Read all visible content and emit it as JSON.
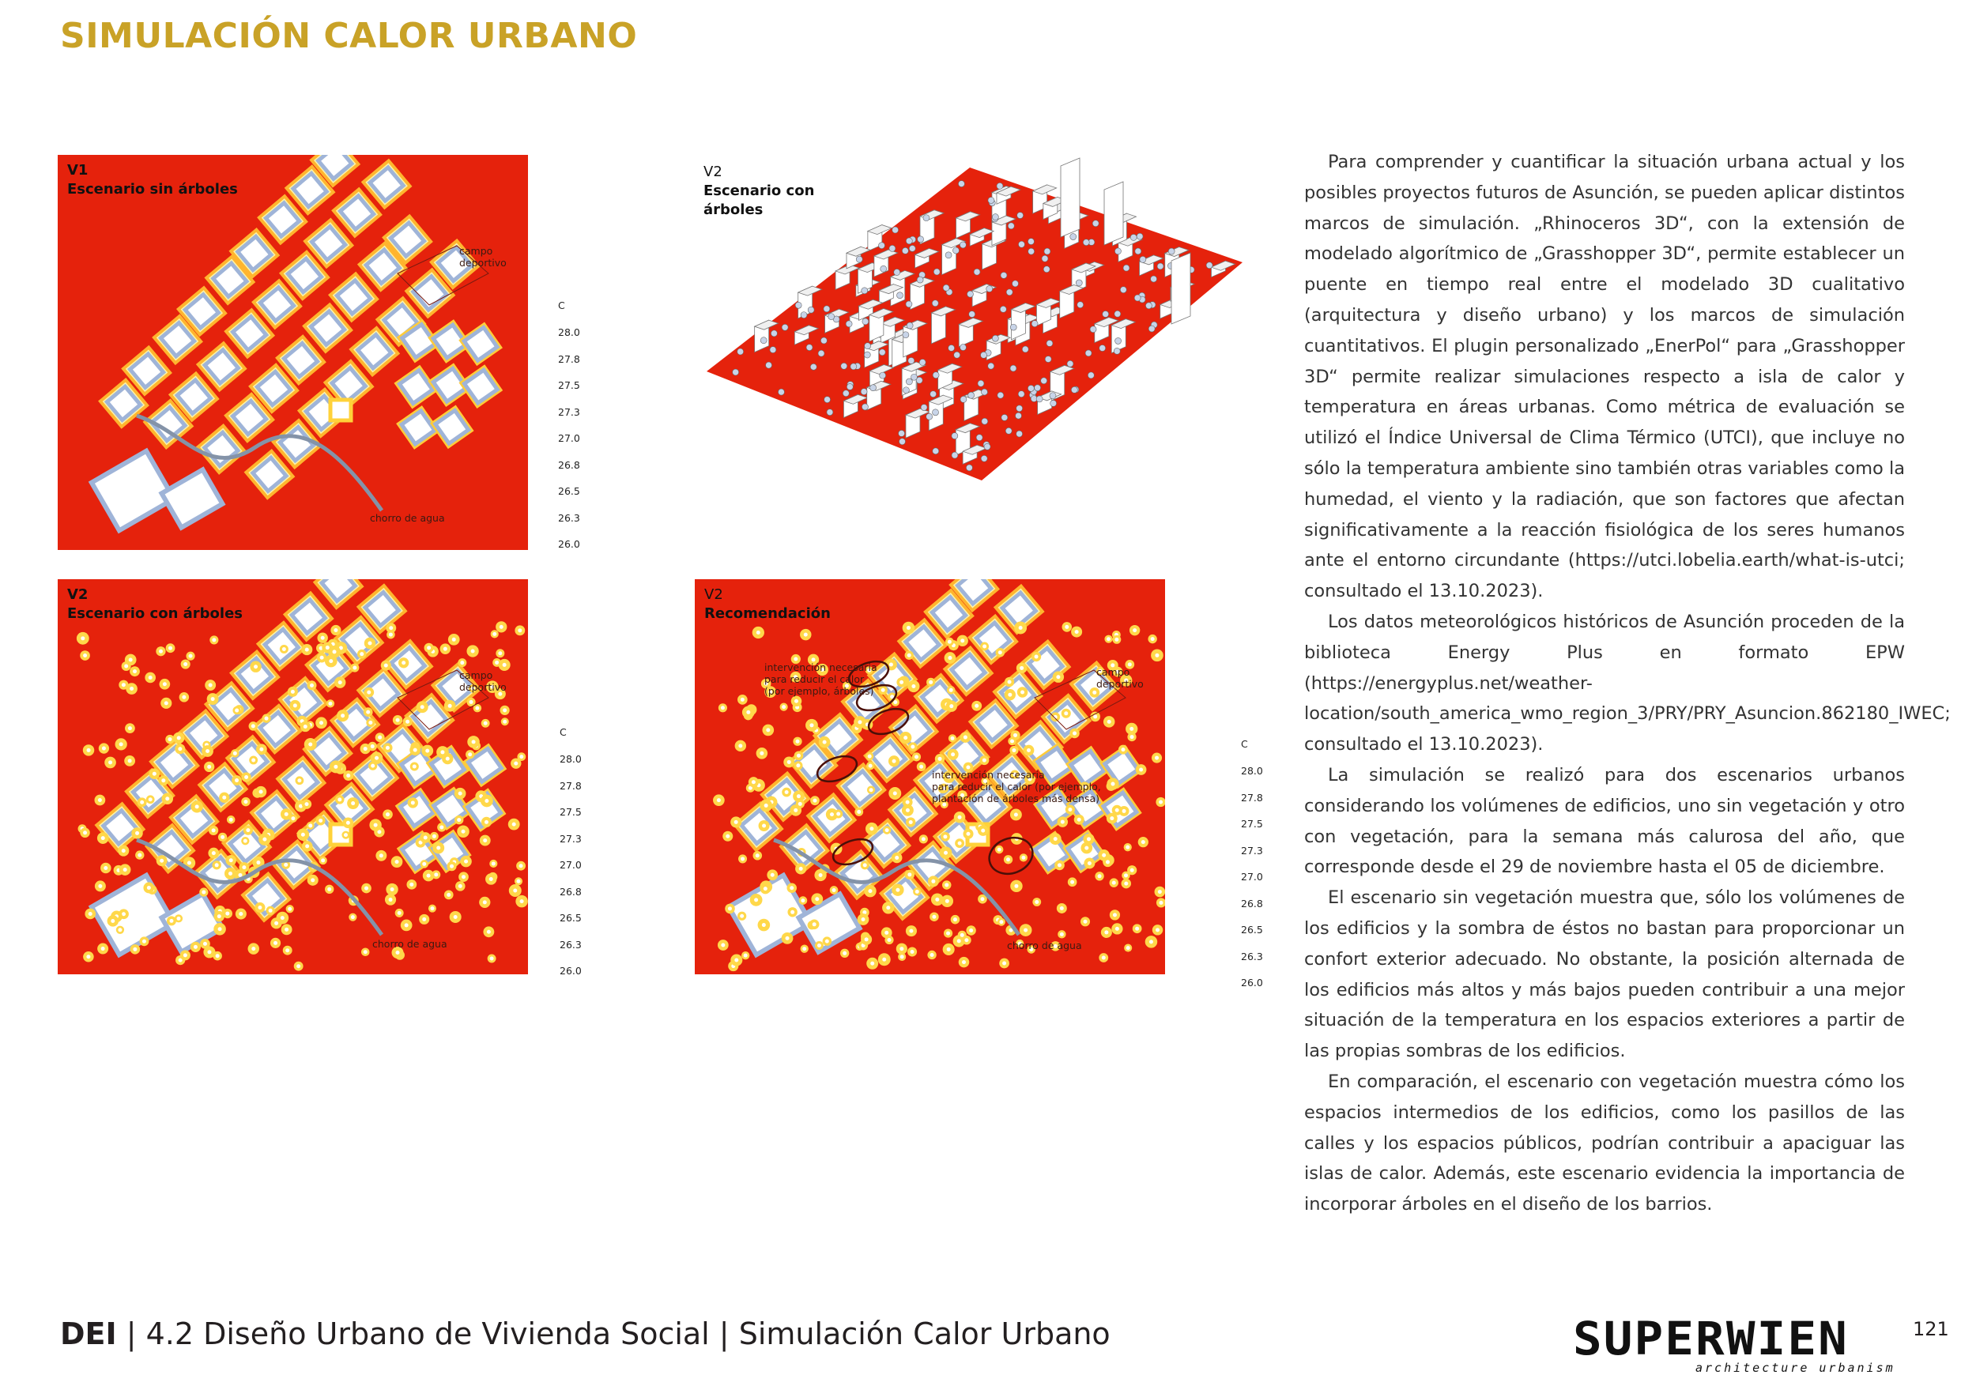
{
  "header": {
    "title": "SIMULACIÓN CALOR URBANO"
  },
  "panels": {
    "v1": {
      "tag": "V1",
      "name": "Escenario sin árboles",
      "field": "campo\ndeportivo",
      "river": "chorro de agua"
    },
    "v2_iso": {
      "tag": "V2",
      "name": "Escenario con\nárboles"
    },
    "v2": {
      "tag": "V2",
      "name": "Escenario con árboles",
      "field": "campo\ndeportivo",
      "river": "chorro de agua"
    },
    "v2_rec": {
      "tag": "V2",
      "name": "Recomendación",
      "field": "campo\ndeportivo",
      "river": "chorro de agua",
      "note1": "intervención necesaria\npara reducir el calor\n(por ejemplo, árboles)",
      "note2": "intervención necesaria\npara reducir el calor (por ejemplo,\nplantación de árboles más densa)"
    }
  },
  "legend": {
    "unit": "C",
    "ticks": [
      "28.0",
      "27.8",
      "27.5",
      "27.3",
      "27.0",
      "26.8",
      "26.5",
      "26.3",
      "26.0"
    ]
  },
  "colors": {
    "heat": "#e5220c",
    "title_gold": "#c9a227",
    "cool": "#9fb4d8"
  },
  "body": {
    "paragraphs": [
      "Para comprender y cuantificar la situación urbana actual y los posibles proyectos futuros de Asunción, se pueden aplicar distintos marcos de simulación. „Rhinoceros 3D“, con la extensión de modelado algorítmico de „Grasshopper 3D“, permite establecer un puente en tiempo real entre el modelado 3D cualitativo (arquitectura y diseño urbano) y los marcos de simulación cuantitativos. El plugin personalizado „EnerPol“ para „Grasshopper 3D“ permite realizar simulaciones respecto a isla de calor y temperatura en áreas urbanas. Como métrica de evaluación se utilizó el Índice Universal de Clima Térmico (UTCI), que incluye no sólo la temperatura ambiente sino también otras variables como la humedad, el viento y la radiación, que son factores que afectan significativamente a la reacción fisiológica de los seres humanos ante el entorno circundante (https://utci.lobelia.earth/what-is-utci; consultado el 13.10.2023).",
      "Los datos meteorológicos históricos de Asunción proceden de la biblioteca Energy Plus en formato EPW (https://energyplus.net/weather-location/south_america_wmo_region_3/PRY/PRY_Asuncion.862180_IWEC; consultado el 13.10.2023).",
      "La simulación se realizó para dos escenarios urbanos considerando los volúmenes de edificios, uno sin vegetación y otro con vegetación, para la semana más calurosa del año, que corresponde desde el 29 de noviembre hasta el 05 de diciembre.",
      "El escenario sin vegetación muestra que, sólo los volúmenes de los edificios y la sombra de éstos no bastan para proporcionar un confort exterior adecuado. No obstante, la posición alternada de los edificios más altos y más bajos pueden contribuir a una mejor situación de la temperatura en los espacios exteriores a partir de las propias sombras de los edificios.",
      "En comparación, el escenario con vegetación muestra cómo los espacios intermedios de los edificios, como los pasillos de las calles y los espacios públicos, podrían contribuir a apaciguar las islas de calor. Además, este escenario evidencia la importancia de incorporar árboles en el diseño de los barrios."
    ]
  },
  "footer": {
    "brand": "DEI",
    "text": " | 4.2 Diseño Urbano de Vivienda Social | Simulación Calor Urbano"
  },
  "logo": {
    "word": "SUPERWIEN",
    "tagline": "architecture urbanism"
  },
  "page": {
    "number": "121"
  }
}
